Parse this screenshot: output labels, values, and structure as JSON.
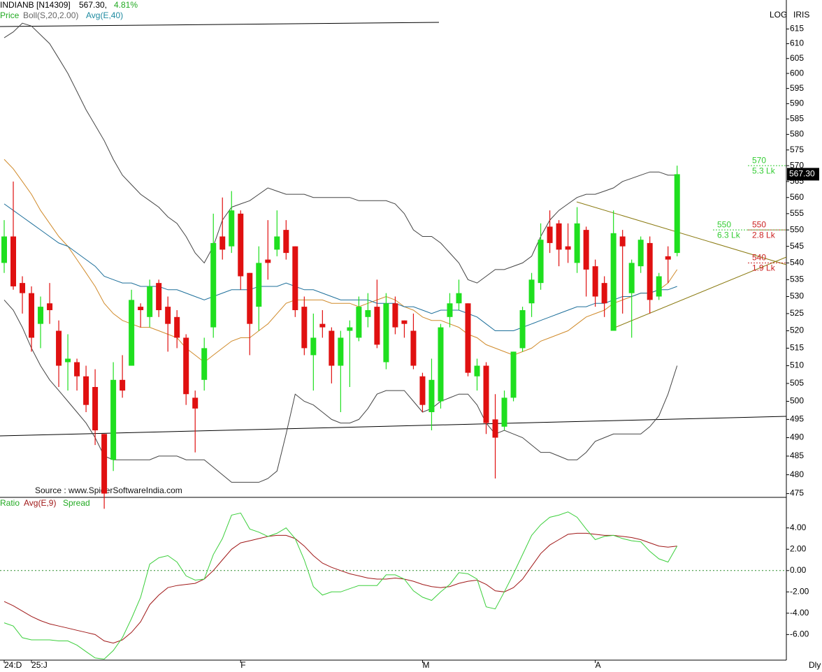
{
  "chart_data": [
    {
      "type": "candlestick",
      "title": "INDIANB [N14309]",
      "header_price": "567.30,",
      "header_change": "4.81%",
      "price_label": "Price",
      "scale_label": "LOG",
      "scheme_label": "IRIS",
      "period_label": "Dly",
      "source": "Source : www.SpiderSoftwareIndia.com",
      "log": true,
      "up_color": "#1fdf1f",
      "down_color": "#e01010",
      "ylim": [
        474,
        625
      ],
      "yticks": [
        475,
        480,
        485,
        490,
        495,
        500,
        505,
        510,
        515,
        520,
        525,
        530,
        535,
        540,
        545,
        550,
        555,
        560,
        565,
        570,
        575,
        580,
        585,
        590,
        595,
        600,
        605,
        610,
        615
      ],
      "categories": [
        "24:D",
        null,
        null,
        "25:J",
        null,
        null,
        null,
        null,
        null,
        null,
        null,
        null,
        null,
        null,
        null,
        null,
        null,
        null,
        null,
        null,
        null,
        null,
        null,
        null,
        null,
        null,
        "F",
        null,
        null,
        null,
        null,
        null,
        null,
        null,
        null,
        null,
        null,
        null,
        null,
        null,
        null,
        null,
        null,
        null,
        null,
        null,
        "M",
        null,
        null,
        null,
        null,
        null,
        null,
        null,
        null,
        null,
        null,
        null,
        null,
        null,
        null,
        null,
        null,
        null,
        null,
        "A",
        null,
        null,
        null,
        null,
        null,
        null,
        null,
        null,
        null
      ],
      "open": [
        540,
        548,
        534,
        531,
        522,
        528,
        520,
        511,
        511,
        507,
        504,
        491,
        484,
        506,
        510,
        527,
        524,
        534,
        527,
        524,
        518,
        501,
        506,
        521,
        548,
        545,
        555,
        537,
        527,
        541,
        544,
        550,
        545,
        527,
        513,
        522,
        520,
        510,
        520,
        518,
        524,
        527,
        511,
        528,
        523,
        520,
        507,
        497,
        500,
        524,
        528,
        528,
        507,
        510,
        495,
        493,
        501,
        515,
        528,
        534,
        551,
        552,
        545,
        540,
        550,
        539,
        534,
        520,
        548,
        531,
        539,
        546,
        530,
        542,
        543
      ],
      "high": [
        553,
        565,
        536,
        533,
        530,
        534,
        523,
        519,
        512,
        510,
        509,
        491,
        511,
        513,
        532,
        528,
        535,
        535,
        530,
        526,
        519,
        503,
        518,
        555,
        560,
        562,
        556,
        537,
        545,
        553,
        556,
        553,
        545,
        530,
        525,
        526,
        521,
        520,
        523,
        530,
        531,
        535,
        531,
        530,
        523,
        525,
        508,
        512,
        522,
        531,
        535,
        528,
        512,
        511,
        502,
        503,
        514,
        527,
        537,
        552,
        556,
        553,
        552,
        557,
        551,
        541,
        536,
        556,
        550,
        541,
        548,
        548,
        537,
        545,
        570
      ],
      "low": [
        537,
        532,
        525,
        514,
        515,
        522,
        504,
        503,
        503,
        497,
        488,
        471,
        481,
        501,
        510,
        521,
        521,
        524,
        514,
        515,
        499,
        486,
        503,
        518,
        541,
        543,
        532,
        513,
        520,
        535,
        542,
        541,
        524,
        513,
        503,
        518,
        505,
        497,
        504,
        517,
        521,
        515,
        509,
        519,
        518,
        509,
        497,
        492,
        498,
        521,
        526,
        507,
        503,
        491,
        479,
        492,
        500,
        514,
        524,
        532,
        543,
        539,
        540,
        537,
        530,
        527,
        524,
        520,
        525,
        518,
        537,
        525,
        529,
        534,
        542
      ],
      "close": [
        548,
        533,
        531,
        518,
        527,
        526,
        510,
        512,
        507,
        499,
        492,
        475,
        506,
        503,
        529,
        526,
        533,
        526,
        522,
        518,
        502,
        498,
        515,
        546,
        544,
        556,
        536,
        522,
        540,
        540,
        548,
        543,
        526,
        515,
        518,
        521,
        510,
        518,
        521,
        527,
        526,
        516,
        528,
        521,
        522,
        510,
        499,
        506,
        521,
        528,
        531,
        508,
        510,
        494,
        490,
        501,
        514,
        526,
        535,
        547,
        546,
        544,
        544,
        552,
        538,
        530,
        528,
        549,
        545,
        540,
        547,
        529,
        536,
        541,
        567.3
      ],
      "series": [
        {
          "name": "Boll(S,20,2.00)",
          "color": "#444444",
          "middle_color": "#d08a2a",
          "upper": [
            612,
            614,
            617,
            616,
            613,
            610,
            605,
            600,
            594,
            588,
            583,
            578,
            572,
            567,
            564,
            561,
            559,
            557,
            554,
            552,
            548,
            543,
            540,
            545,
            553,
            557,
            558,
            559,
            561,
            563,
            562,
            561,
            561,
            561,
            560,
            560,
            560,
            560,
            560,
            559,
            559,
            559,
            559,
            558,
            555,
            550,
            548,
            548,
            546,
            543,
            540,
            535,
            534,
            536,
            538,
            538,
            539,
            540,
            542,
            548,
            553,
            556,
            558,
            560,
            561,
            561,
            562,
            563,
            565,
            566,
            567,
            568,
            568,
            567,
            567
          ],
          "middle": [
            572,
            569,
            565,
            561,
            556,
            552,
            548,
            545,
            541,
            537,
            533,
            528,
            525,
            523,
            522,
            521,
            521,
            520,
            519,
            518,
            515,
            513,
            511,
            513,
            515,
            517,
            518,
            518,
            520,
            522,
            525,
            528,
            529,
            529,
            529,
            529,
            528,
            528,
            528,
            527,
            528,
            529,
            530,
            529,
            527,
            526,
            524,
            523,
            523,
            522,
            521,
            519,
            518,
            516,
            515,
            514,
            513,
            514,
            515,
            517,
            518,
            519,
            520,
            522,
            524,
            525,
            526,
            528,
            529,
            530,
            531,
            531,
            532,
            534,
            538
          ],
          "lower": [
            529,
            526,
            521,
            515,
            510,
            506,
            503,
            500,
            497,
            494,
            490,
            485,
            484,
            484,
            484,
            484,
            484,
            485,
            485,
            485,
            484,
            484,
            484,
            482,
            480,
            478,
            478,
            478,
            478,
            479,
            481,
            491,
            502,
            500,
            499,
            497,
            495,
            494,
            494,
            495,
            498,
            502,
            503,
            503,
            503,
            500,
            497,
            498,
            500,
            501,
            502,
            502,
            499,
            494,
            491,
            492,
            491,
            490,
            488,
            486,
            486,
            485,
            484,
            484,
            486,
            489,
            490,
            491,
            491,
            491,
            491,
            493,
            496,
            502,
            510
          ]
        },
        {
          "name": "Avg(E,40)",
          "color": "#1d6f9a",
          "values": [
            558,
            556,
            554,
            552,
            550,
            548,
            546,
            545,
            543,
            541,
            539,
            536,
            535,
            534,
            534,
            533,
            533,
            533,
            532,
            532,
            531,
            530,
            529,
            530,
            531,
            532,
            532,
            532,
            533,
            533,
            533,
            534,
            533,
            532,
            532,
            531,
            530,
            529,
            529,
            529,
            529,
            528,
            528,
            528,
            527,
            527,
            526,
            525,
            526,
            526,
            526,
            525,
            524,
            522,
            520,
            520,
            520,
            521,
            522,
            523,
            524,
            525,
            526,
            527,
            527,
            528,
            528,
            529,
            530,
            530,
            531,
            531,
            532,
            532,
            533
          ]
        }
      ],
      "price_marker": {
        "value": 567.3,
        "label": "567.30"
      },
      "annotations": [
        {
          "price": 570,
          "volume": "5.3 Lk",
          "color": "#33cc33"
        },
        {
          "price": 550,
          "volume": "6.3 Lk",
          "color": "#33cc33"
        },
        {
          "price": 550,
          "volume": "2.8 Lk",
          "color": "#cc2222"
        },
        {
          "price": 540,
          "volume": "1.9 Lk",
          "color": "#cc2222"
        }
      ]
    },
    {
      "type": "line",
      "title": "Ratio",
      "title_color": "#22aa22",
      "ylim": [
        -8.4,
        6.8
      ],
      "yticks": [
        {
          "value": 4,
          "label": "4.00"
        },
        {
          "value": 2,
          "label": "2.00"
        },
        {
          "value": 0,
          "label": "0.00"
        },
        {
          "value": -2,
          "label": "-2.00"
        },
        {
          "value": -4,
          "label": "-4.00"
        },
        {
          "value": -6,
          "label": "-6.00"
        }
      ],
      "reference_line": 0,
      "series": [
        {
          "name": "Avg(E,9)",
          "color": "#a01818",
          "values": [
            -2.9,
            -3.3,
            -3.8,
            -4.3,
            -4.7,
            -5.0,
            -5.2,
            -5.4,
            -5.6,
            -5.8,
            -6.0,
            -6.6,
            -6.8,
            -6.5,
            -5.8,
            -4.8,
            -3.2,
            -2.3,
            -1.6,
            -1.4,
            -1.3,
            -1.2,
            -0.8,
            0.0,
            1.0,
            2.0,
            2.6,
            2.8,
            3.0,
            3.2,
            3.3,
            3.3,
            3.0,
            2.3,
            1.4,
            0.7,
            0.3,
            0.0,
            -0.3,
            -0.5,
            -0.7,
            -0.8,
            -0.8,
            -0.7,
            -0.8,
            -1.0,
            -1.3,
            -1.5,
            -1.6,
            -1.5,
            -1.2,
            -1.0,
            -0.9,
            -1.3,
            -1.9,
            -2.0,
            -1.6,
            -0.8,
            0.4,
            1.6,
            2.4,
            2.9,
            3.4,
            3.5,
            3.5,
            3.4,
            3.3,
            3.3,
            3.2,
            3.1,
            2.9,
            2.6,
            2.3,
            2.2,
            2.3
          ]
        },
        {
          "name": "Spread",
          "color": "#3ccf3c",
          "values": [
            -4.9,
            -5.2,
            -6.3,
            -6.5,
            -6.5,
            -6.5,
            -6.6,
            -6.6,
            -7.0,
            -7.6,
            -8.2,
            -8.3,
            -7.5,
            -6.3,
            -4.5,
            -2.5,
            0.6,
            1.2,
            1.4,
            0.8,
            -0.5,
            -0.9,
            -0.8,
            1.5,
            3.0,
            5.2,
            5.4,
            3.9,
            3.6,
            3.2,
            3.5,
            4.0,
            3.0,
            1.0,
            -1.5,
            -2.3,
            -2.0,
            -2.0,
            -1.7,
            -1.4,
            -1.4,
            -1.4,
            -0.4,
            -0.4,
            -0.8,
            -1.9,
            -2.5,
            -2.8,
            -2.0,
            -1.3,
            -0.2,
            -0.3,
            -0.8,
            -3.4,
            -3.6,
            -2.0,
            -0.3,
            1.5,
            3.3,
            4.3,
            5.0,
            5.2,
            5.5,
            5.0,
            3.9,
            2.9,
            3.2,
            3.3,
            3.0,
            2.8,
            2.7,
            1.8,
            1.1,
            0.8,
            2.3
          ]
        }
      ]
    }
  ]
}
